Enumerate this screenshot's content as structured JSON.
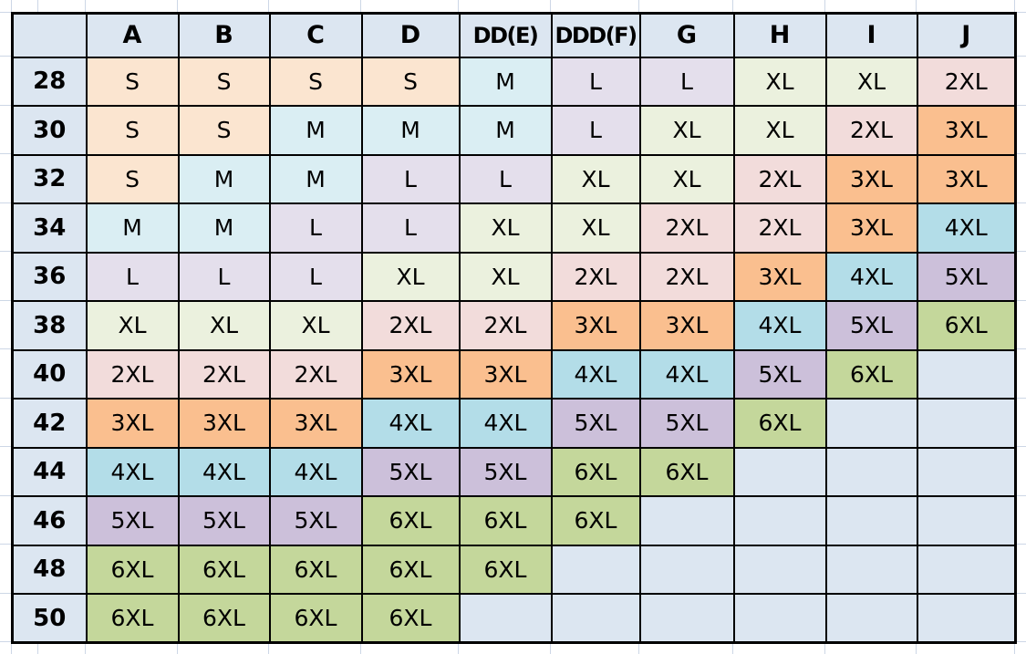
{
  "chart_data": {
    "type": "table",
    "columns": [
      "A",
      "B",
      "C",
      "D",
      "DD(E)",
      "DDD(F)",
      "G",
      "H",
      "I",
      "J"
    ],
    "rows": [
      {
        "label": "28",
        "cells": [
          "S",
          "S",
          "S",
          "S",
          "M",
          "L",
          "L",
          "XL",
          "XL",
          "2XL"
        ]
      },
      {
        "label": "30",
        "cells": [
          "S",
          "S",
          "M",
          "M",
          "M",
          "L",
          "XL",
          "XL",
          "2XL",
          "3XL"
        ]
      },
      {
        "label": "32",
        "cells": [
          "S",
          "M",
          "M",
          "L",
          "L",
          "XL",
          "XL",
          "2XL",
          "3XL",
          "3XL"
        ]
      },
      {
        "label": "34",
        "cells": [
          "M",
          "M",
          "L",
          "L",
          "XL",
          "XL",
          "2XL",
          "2XL",
          "3XL",
          "4XL"
        ]
      },
      {
        "label": "36",
        "cells": [
          "L",
          "L",
          "L",
          "XL",
          "XL",
          "2XL",
          "2XL",
          "3XL",
          "4XL",
          "5XL"
        ]
      },
      {
        "label": "38",
        "cells": [
          "XL",
          "XL",
          "XL",
          "2XL",
          "2XL",
          "3XL",
          "3XL",
          "4XL",
          "5XL",
          "6XL"
        ]
      },
      {
        "label": "40",
        "cells": [
          "2XL",
          "2XL",
          "2XL",
          "3XL",
          "3XL",
          "4XL",
          "4XL",
          "5XL",
          "6XL",
          ""
        ]
      },
      {
        "label": "42",
        "cells": [
          "3XL",
          "3XL",
          "3XL",
          "4XL",
          "4XL",
          "5XL",
          "5XL",
          "6XL",
          "",
          ""
        ]
      },
      {
        "label": "44",
        "cells": [
          "4XL",
          "4XL",
          "4XL",
          "5XL",
          "5XL",
          "6XL",
          "6XL",
          "",
          "",
          ""
        ]
      },
      {
        "label": "46",
        "cells": [
          "5XL",
          "5XL",
          "5XL",
          "6XL",
          "6XL",
          "6XL",
          "",
          "",
          "",
          ""
        ]
      },
      {
        "label": "48",
        "cells": [
          "6XL",
          "6XL",
          "6XL",
          "6XL",
          "6XL",
          "",
          "",
          "",
          "",
          ""
        ]
      },
      {
        "label": "50",
        "cells": [
          "6XL",
          "6XL",
          "6XL",
          "6XL",
          "",
          "",
          "",
          "",
          "",
          ""
        ]
      }
    ],
    "size_values": [
      "S",
      "M",
      "L",
      "XL",
      "2XL",
      "3XL",
      "4XL",
      "5XL",
      "6XL"
    ]
  },
  "colors": {
    "S": "#FBE5D0",
    "M": "#DAEEF3",
    "L": "#E4DFEC",
    "XL": "#EBF1DE",
    "2XL": "#F2DCDB",
    "3XL": "#FABF8F",
    "4XL": "#B3DDE8",
    "5XL": "#CCC0DA",
    "6XL": "#C4D79B",
    "header_fill": "#DCE6F1",
    "empty_fill": "#DCE6F1",
    "table_border": "#000000",
    "sheet_gridline": "#CDD7E6"
  }
}
